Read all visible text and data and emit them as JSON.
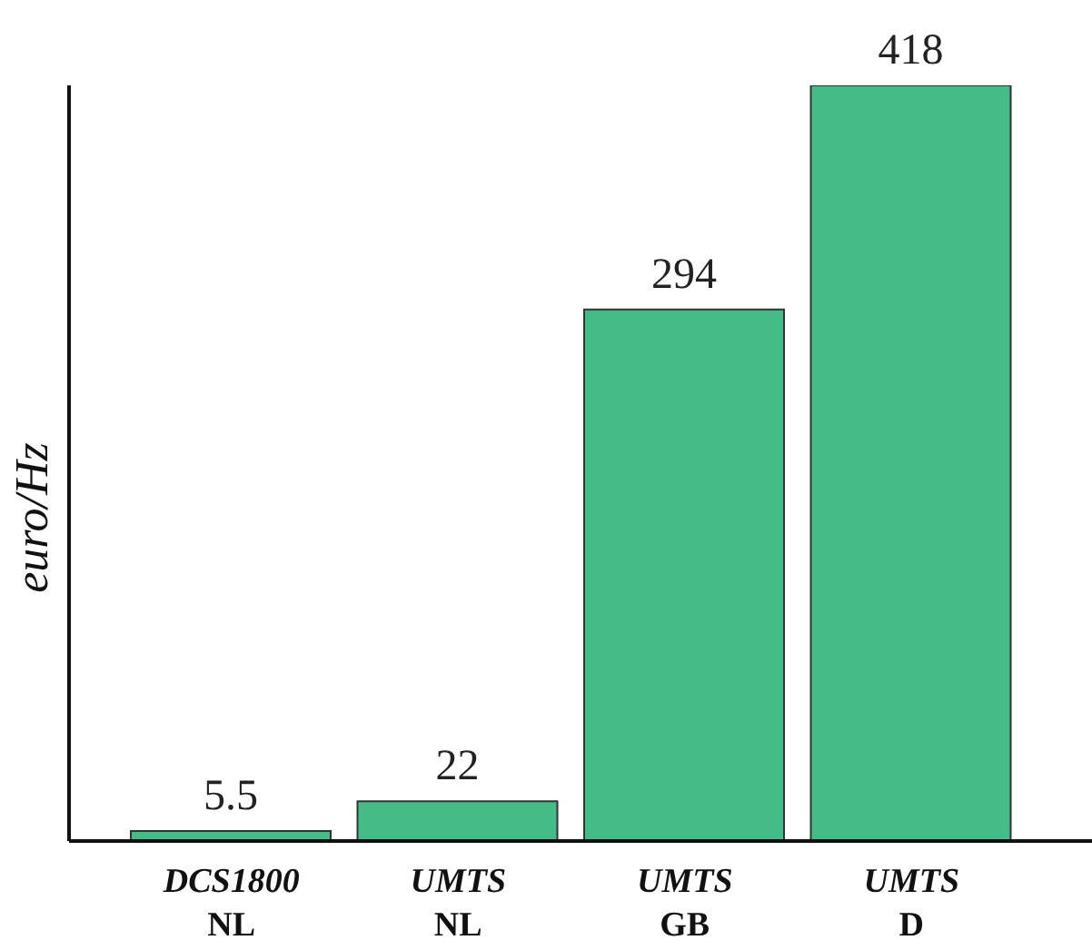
{
  "chart_data": {
    "type": "bar",
    "ylabel": "euro/Hz",
    "categories": [
      "DCS1800\nNL",
      "UMTS\nNL",
      "UMTS\nGB",
      "UMTS\nD"
    ],
    "values": [
      5.5,
      22,
      294,
      418
    ],
    "color": "#43bc87",
    "data_labels": true,
    "relative": false,
    "grid": false,
    "legend": false
  }
}
